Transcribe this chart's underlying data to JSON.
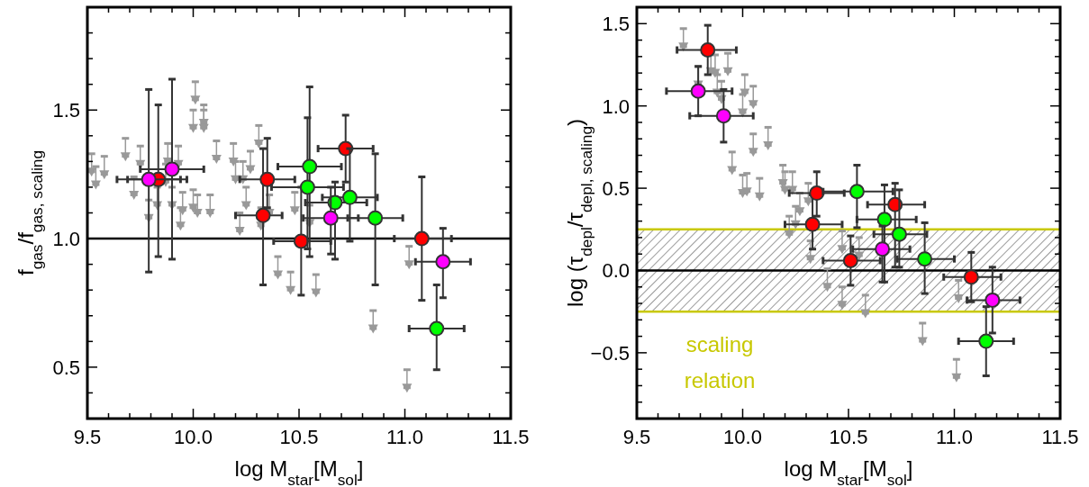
{
  "chart_data": [
    {
      "type": "scatter",
      "xlabel": "log M$_{star}$[M$_{sol}$]",
      "ylabel": "f$_{gas}$/f$_{gas, scaling}$",
      "xlim": [
        9.5,
        11.5
      ],
      "ylim": [
        0.3,
        1.9
      ],
      "xticks": [
        {
          "value": 9.5,
          "label": "9.5"
        },
        {
          "value": 9.6,
          "label": null
        },
        {
          "value": 9.7,
          "label": null
        },
        {
          "value": 9.8,
          "label": null
        },
        {
          "value": 9.9,
          "label": null
        },
        {
          "value": 10.0,
          "label": "10.0"
        },
        {
          "value": 10.1,
          "label": null
        },
        {
          "value": 10.2,
          "label": null
        },
        {
          "value": 10.3,
          "label": null
        },
        {
          "value": 10.4,
          "label": null
        },
        {
          "value": 10.5,
          "label": "10.5"
        },
        {
          "value": 10.6,
          "label": null
        },
        {
          "value": 10.7,
          "label": null
        },
        {
          "value": 10.8,
          "label": null
        },
        {
          "value": 10.9,
          "label": null
        },
        {
          "value": 11.0,
          "label": "11.0"
        },
        {
          "value": 11.1,
          "label": null
        },
        {
          "value": 11.2,
          "label": null
        },
        {
          "value": 11.3,
          "label": null
        },
        {
          "value": 11.4,
          "label": null
        },
        {
          "value": 11.5,
          "label": "11.5"
        }
      ],
      "yticks": [
        {
          "value": 0.3,
          "label": null
        },
        {
          "value": 0.4,
          "label": null
        },
        {
          "value": 0.5,
          "label": "0.5"
        },
        {
          "value": 0.6,
          "label": null
        },
        {
          "value": 0.7,
          "label": null
        },
        {
          "value": 0.8,
          "label": null
        },
        {
          "value": 0.9,
          "label": null
        },
        {
          "value": 1.0,
          "label": "1.0"
        },
        {
          "value": 1.1,
          "label": null
        },
        {
          "value": 1.2,
          "label": null
        },
        {
          "value": 1.3,
          "label": null
        },
        {
          "value": 1.4,
          "label": null
        },
        {
          "value": 1.5,
          "label": "1.5"
        },
        {
          "value": 1.6,
          "label": null
        },
        {
          "value": 1.7,
          "label": null
        },
        {
          "value": 1.8,
          "label": null
        }
      ],
      "ref_lines": [
        {
          "axis": "y",
          "value": 1.0,
          "color": "#000000"
        }
      ],
      "series": [
        {
          "marker": "triangle",
          "color": "#999999",
          "x": [
            9.52,
            9.54,
            9.58,
            9.68,
            9.72,
            9.75,
            9.79,
            9.83,
            9.87,
            9.88,
            9.9,
            9.93,
            9.95,
            9.94,
            10.0,
            10.0,
            10.01,
            10.02,
            10.05,
            10.05,
            10.08,
            10.11,
            10.19,
            10.2,
            10.235,
            10.22,
            10.25,
            10.27,
            10.31,
            10.32,
            10.36,
            10.4,
            10.46,
            10.48,
            10.55,
            10.58,
            10.85,
            11.02,
            11.01
          ],
          "values": [
            1.26,
            1.21,
            1.25,
            1.32,
            1.17,
            1.29,
            1.08,
            1.13,
            1.22,
            1.3,
            1.13,
            1.29,
            1.11,
            1.05,
            1.43,
            1.12,
            1.54,
            1.1,
            1.45,
            1.43,
            1.1,
            1.31,
            1.3,
            1.23,
            1.23,
            1.03,
            1.13,
            1.27,
            1.37,
            1.05,
            1.1,
            0.86,
            0.8,
            1.11,
            1.06,
            0.79,
            0.65,
            0.9,
            0.42
          ],
          "errors": [
            [
              1.26,
              1.33
            ],
            [
              1.21,
              1.28
            ],
            [
              1.25,
              1.32
            ],
            [
              1.32,
              1.39
            ],
            [
              1.17,
              1.24
            ],
            [
              1.29,
              1.36
            ],
            [
              1.08,
              1.15
            ],
            [
              1.13,
              1.2
            ],
            [
              1.22,
              1.29
            ],
            [
              1.3,
              1.37
            ],
            [
              1.13,
              1.2
            ],
            [
              1.29,
              1.36
            ],
            [
              1.11,
              1.18
            ],
            [
              1.05,
              1.12
            ],
            [
              1.43,
              1.5
            ],
            [
              1.12,
              1.19
            ],
            [
              1.54,
              1.61
            ],
            [
              1.1,
              1.17
            ],
            [
              1.45,
              1.52
            ],
            [
              1.43,
              1.5
            ],
            [
              1.1,
              1.17
            ],
            [
              1.31,
              1.38
            ],
            [
              1.3,
              1.37
            ],
            [
              1.23,
              1.3
            ],
            [
              1.23,
              1.3
            ],
            [
              1.03,
              1.1
            ],
            [
              1.13,
              1.2
            ],
            [
              1.27,
              1.34
            ],
            [
              1.37,
              1.44
            ],
            [
              1.05,
              1.12
            ],
            [
              1.1,
              1.17
            ],
            [
              0.86,
              0.93
            ],
            [
              0.8,
              0.87
            ],
            [
              1.11,
              1.18
            ],
            [
              1.06,
              1.13
            ],
            [
              0.79,
              0.86
            ],
            [
              0.65,
              0.72
            ],
            [
              0.9,
              0.97
            ],
            [
              0.42,
              0.49
            ]
          ]
        },
        {
          "marker": "circle",
          "color": "#ff0000",
          "x": [
            9.835,
            10.35,
            10.33,
            10.51,
            10.72,
            11.08
          ],
          "values": [
            1.23,
            1.23,
            1.09,
            0.99,
            1.35,
            1.0
          ],
          "errors": [
            [
              0.93,
              1.52
            ],
            [
              1.12,
              1.39
            ],
            [
              0.82,
              1.35
            ],
            [
              0.78,
              1.2
            ],
            [
              1.22,
              1.48
            ],
            [
              0.76,
              1.24
            ]
          ],
          "xerrors": [
            [
              9.69,
              9.97
            ],
            [
              10.22,
              10.48
            ],
            [
              10.2,
              10.42
            ],
            [
              10.38,
              10.65
            ],
            [
              10.59,
              10.85
            ],
            [
              10.95,
              11.22
            ]
          ]
        },
        {
          "marker": "circle",
          "color": "#00ff00",
          "x": [
            10.55,
            10.54,
            10.74,
            10.67,
            10.86,
            11.15
          ],
          "values": [
            1.28,
            1.2,
            1.16,
            1.14,
            1.08,
            0.65
          ],
          "errors": [
            [
              0.93,
              1.59
            ],
            [
              0.96,
              1.47
            ],
            [
              0.99,
              1.35
            ],
            [
              0.92,
              1.22
            ],
            [
              0.82,
              1.33
            ],
            [
              0.49,
              0.82
            ]
          ],
          "xerrors": [
            [
              10.4,
              10.7
            ],
            [
              10.37,
              10.71
            ],
            [
              10.61,
              10.87
            ],
            [
              10.53,
              10.82
            ],
            [
              10.73,
              10.99
            ],
            [
              11.02,
              11.28
            ]
          ]
        },
        {
          "marker": "circle",
          "color": "#ff00ff",
          "x": [
            9.79,
            9.9,
            10.65,
            11.18
          ],
          "values": [
            1.23,
            1.27,
            1.08,
            0.91
          ],
          "errors": [
            [
              0.87,
              1.58
            ],
            [
              0.92,
              1.62
            ],
            [
              0.94,
              1.2
            ],
            [
              0.77,
              1.04
            ]
          ],
          "xerrors": [
            [
              9.64,
              9.94
            ],
            [
              9.75,
              10.05
            ],
            [
              10.52,
              10.78
            ],
            [
              11.05,
              11.31
            ]
          ]
        }
      ]
    },
    {
      "type": "scatter",
      "xlabel": "log M$_{star}$[M$_{sol}$]",
      "ylabel": "log (τ$_{depl}$/τ$_{depl, scaling}$)",
      "xlim": [
        9.5,
        11.5
      ],
      "ylim": [
        -0.9,
        1.6
      ],
      "xticks": [
        {
          "value": 9.5,
          "label": "9.5"
        },
        {
          "value": 9.6,
          "label": null
        },
        {
          "value": 9.7,
          "label": null
        },
        {
          "value": 9.8,
          "label": null
        },
        {
          "value": 9.9,
          "label": null
        },
        {
          "value": 10.0,
          "label": "10.0"
        },
        {
          "value": 10.1,
          "label": null
        },
        {
          "value": 10.2,
          "label": null
        },
        {
          "value": 10.3,
          "label": null
        },
        {
          "value": 10.4,
          "label": null
        },
        {
          "value": 10.5,
          "label": "10.5"
        },
        {
          "value": 10.6,
          "label": null
        },
        {
          "value": 10.7,
          "label": null
        },
        {
          "value": 10.8,
          "label": null
        },
        {
          "value": 10.9,
          "label": null
        },
        {
          "value": 11.0,
          "label": "11.0"
        },
        {
          "value": 11.1,
          "label": null
        },
        {
          "value": 11.2,
          "label": null
        },
        {
          "value": 11.3,
          "label": null
        },
        {
          "value": 11.4,
          "label": null
        },
        {
          "value": 11.5,
          "label": "11.5"
        }
      ],
      "yticks": [
        {
          "value": -0.8,
          "label": null
        },
        {
          "value": -0.7,
          "label": null
        },
        {
          "value": -0.6,
          "label": null
        },
        {
          "value": -0.5,
          "label": "−0.5"
        },
        {
          "value": -0.4,
          "label": null
        },
        {
          "value": -0.3,
          "label": null
        },
        {
          "value": -0.2,
          "label": null
        },
        {
          "value": -0.1,
          "label": null
        },
        {
          "value": 0.0,
          "label": "0.0"
        },
        {
          "value": 0.1,
          "label": null
        },
        {
          "value": 0.2,
          "label": null
        },
        {
          "value": 0.3,
          "label": null
        },
        {
          "value": 0.4,
          "label": null
        },
        {
          "value": 0.5,
          "label": "0.5"
        },
        {
          "value": 0.6,
          "label": null
        },
        {
          "value": 0.7,
          "label": null
        },
        {
          "value": 0.8,
          "label": null
        },
        {
          "value": 0.9,
          "label": null
        },
        {
          "value": 1.0,
          "label": "1.0"
        },
        {
          "value": 1.1,
          "label": null
        },
        {
          "value": 1.2,
          "label": null
        },
        {
          "value": 1.3,
          "label": null
        },
        {
          "value": 1.4,
          "label": null
        },
        {
          "value": 1.5,
          "label": "1.5"
        }
      ],
      "ref_lines": [
        {
          "axis": "y",
          "value": 0.0,
          "color": "#000000"
        }
      ],
      "bands": [
        {
          "axis": "y",
          "from": -0.25,
          "to": 0.25,
          "color": "#c8c800"
        }
      ],
      "annotations": [
        "scaling relation"
      ],
      "series": [
        {
          "marker": "triangle",
          "color": "#999999",
          "x": [
            9.72,
            9.79,
            9.85,
            9.87,
            9.93,
            9.88,
            9.9,
            10.0,
            10.01,
            10.05,
            10.05,
            10.12,
            9.95,
            10.0,
            10.02,
            10.08,
            10.19,
            10.2,
            10.235,
            10.27,
            10.25,
            10.22,
            10.31,
            10.32,
            10.4,
            10.47,
            10.47,
            10.55,
            10.58,
            10.85,
            11.02,
            11.01
          ],
          "values": [
            1.36,
            1.13,
            1.21,
            1.2,
            1.21,
            1.08,
            1.04,
            0.96,
            1.08,
            1.01,
            0.72,
            0.76,
            0.61,
            0.47,
            0.48,
            0.45,
            0.53,
            0.49,
            0.49,
            0.36,
            0.28,
            0.22,
            0.42,
            0.07,
            -0.1,
            -0.21,
            0.13,
            0.09,
            -0.26,
            -0.43,
            -0.17,
            -0.65
          ],
          "errors": [
            [
              1.36,
              1.47
            ],
            [
              1.13,
              1.24
            ],
            [
              1.21,
              1.32
            ],
            [
              1.2,
              1.31
            ],
            [
              1.21,
              1.32
            ],
            [
              1.08,
              1.19
            ],
            [
              1.04,
              1.15
            ],
            [
              0.96,
              1.07
            ],
            [
              1.08,
              1.19
            ],
            [
              1.01,
              1.12
            ],
            [
              0.72,
              0.83
            ],
            [
              0.76,
              0.87
            ],
            [
              0.61,
              0.72
            ],
            [
              0.47,
              0.58
            ],
            [
              0.48,
              0.59
            ],
            [
              0.45,
              0.56
            ],
            [
              0.53,
              0.64
            ],
            [
              0.49,
              0.6
            ],
            [
              0.49,
              0.6
            ],
            [
              0.36,
              0.47
            ],
            [
              0.28,
              0.39
            ],
            [
              0.22,
              0.33
            ],
            [
              0.42,
              0.53
            ],
            [
              0.07,
              0.18
            ],
            [
              -0.1,
              0.01
            ],
            [
              -0.21,
              -0.1
            ],
            [
              0.13,
              0.24
            ],
            [
              0.09,
              0.2
            ],
            [
              -0.26,
              -0.15
            ],
            [
              -0.43,
              -0.32
            ],
            [
              -0.17,
              -0.06
            ],
            [
              -0.65,
              -0.54
            ]
          ]
        },
        {
          "marker": "circle",
          "color": "#ff0000",
          "x": [
            9.835,
            10.35,
            10.33,
            10.51,
            10.72,
            11.08
          ],
          "values": [
            1.34,
            0.47,
            0.28,
            0.06,
            0.4,
            -0.04
          ],
          "errors": [
            [
              1.19,
              1.49
            ],
            [
              0.33,
              0.6
            ],
            [
              0.13,
              0.46
            ],
            [
              -0.09,
              0.21
            ],
            [
              0.02,
              0.53
            ],
            [
              -0.19,
              0.11
            ]
          ],
          "xerrors": [
            [
              9.69,
              9.97
            ],
            [
              10.22,
              10.48
            ],
            [
              10.2,
              10.47
            ],
            [
              10.38,
              10.65
            ],
            [
              10.59,
              10.86
            ],
            [
              10.95,
              11.22
            ]
          ]
        },
        {
          "marker": "circle",
          "color": "#00ff00",
          "x": [
            10.54,
            10.67,
            10.74,
            10.86,
            11.15
          ],
          "values": [
            0.48,
            0.31,
            0.22,
            0.07,
            -0.43
          ],
          "errors": [
            [
              0.26,
              0.64
            ],
            [
              -0.07,
              0.52
            ],
            [
              0.02,
              0.49
            ],
            [
              -0.14,
              0.29
            ],
            [
              -0.64,
              -0.22
            ]
          ],
          "xerrors": [
            [
              10.38,
              10.71
            ],
            [
              10.54,
              10.82
            ],
            [
              10.62,
              10.87
            ],
            [
              10.73,
              11.0
            ],
            [
              11.02,
              11.28
            ]
          ]
        },
        {
          "marker": "circle",
          "color": "#ff00ff",
          "x": [
            9.79,
            9.91,
            10.66,
            11.18
          ],
          "values": [
            1.09,
            0.94,
            0.13,
            -0.18
          ],
          "errors": [
            [
              0.94,
              1.24
            ],
            [
              0.78,
              1.1
            ],
            [
              -0.07,
              0.27
            ],
            [
              -0.38,
              0.02
            ]
          ],
          "xerrors": [
            [
              9.64,
              9.95
            ],
            [
              9.75,
              10.05
            ],
            [
              10.52,
              10.79
            ],
            [
              11.06,
              11.31
            ]
          ]
        }
      ]
    }
  ]
}
